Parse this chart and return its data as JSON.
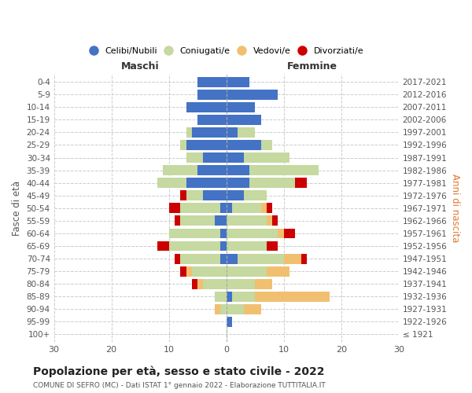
{
  "age_groups": [
    "100+",
    "95-99",
    "90-94",
    "85-89",
    "80-84",
    "75-79",
    "70-74",
    "65-69",
    "60-64",
    "55-59",
    "50-54",
    "45-49",
    "40-44",
    "35-39",
    "30-34",
    "25-29",
    "20-24",
    "15-19",
    "10-14",
    "5-9",
    "0-4"
  ],
  "birth_years": [
    "≤ 1921",
    "1922-1926",
    "1927-1931",
    "1932-1936",
    "1937-1941",
    "1942-1946",
    "1947-1951",
    "1952-1956",
    "1957-1961",
    "1962-1966",
    "1967-1971",
    "1972-1976",
    "1977-1981",
    "1982-1986",
    "1987-1991",
    "1992-1996",
    "1997-2001",
    "2002-2006",
    "2007-2011",
    "2012-2016",
    "2017-2021"
  ],
  "colors": {
    "celibi": "#4472c4",
    "coniugati": "#c5d9a0",
    "vedovi": "#f0c070",
    "divorziati": "#cc0000"
  },
  "maschi": {
    "celibi": [
      0,
      0,
      0,
      0,
      0,
      0,
      1,
      1,
      1,
      2,
      1,
      4,
      7,
      5,
      4,
      7,
      6,
      5,
      7,
      5,
      5
    ],
    "coniugati": [
      0,
      0,
      1,
      2,
      4,
      6,
      7,
      9,
      9,
      6,
      7,
      3,
      5,
      6,
      3,
      1,
      1,
      0,
      0,
      0,
      0
    ],
    "vedovi": [
      0,
      0,
      1,
      0,
      1,
      1,
      0,
      0,
      0,
      0,
      0,
      0,
      0,
      0,
      0,
      0,
      0,
      0,
      0,
      0,
      0
    ],
    "divorziati": [
      0,
      0,
      0,
      0,
      1,
      1,
      1,
      2,
      0,
      1,
      2,
      1,
      0,
      0,
      0,
      0,
      0,
      0,
      0,
      0,
      0
    ]
  },
  "femmine": {
    "celibi": [
      0,
      1,
      0,
      1,
      0,
      0,
      2,
      0,
      0,
      0,
      1,
      3,
      4,
      4,
      3,
      6,
      2,
      6,
      5,
      9,
      4
    ],
    "coniugati": [
      0,
      0,
      3,
      4,
      5,
      7,
      8,
      7,
      9,
      7,
      5,
      4,
      8,
      12,
      8,
      2,
      3,
      0,
      0,
      0,
      0
    ],
    "vedovi": [
      0,
      0,
      3,
      13,
      3,
      4,
      3,
      0,
      1,
      1,
      1,
      0,
      0,
      0,
      0,
      0,
      0,
      0,
      0,
      0,
      0
    ],
    "divorziati": [
      0,
      0,
      0,
      0,
      0,
      0,
      1,
      2,
      2,
      1,
      1,
      0,
      2,
      0,
      0,
      0,
      0,
      0,
      0,
      0,
      0
    ]
  },
  "xlim": 30,
  "title": "Popolazione per età, sesso e stato civile - 2022",
  "subtitle": "COMUNE DI SEFRO (MC) - Dati ISTAT 1° gennaio 2022 - Elaborazione TUTTITALIA.IT",
  "ylabel_left": "Fasce di età",
  "ylabel_right": "Anni di nascita",
  "xlabel_left": "Maschi",
  "xlabel_right": "Femmine",
  "legend_labels": [
    "Celibi/Nubili",
    "Coniugati/e",
    "Vedovi/e",
    "Divorziati/e"
  ],
  "bg_color": "#ffffff"
}
